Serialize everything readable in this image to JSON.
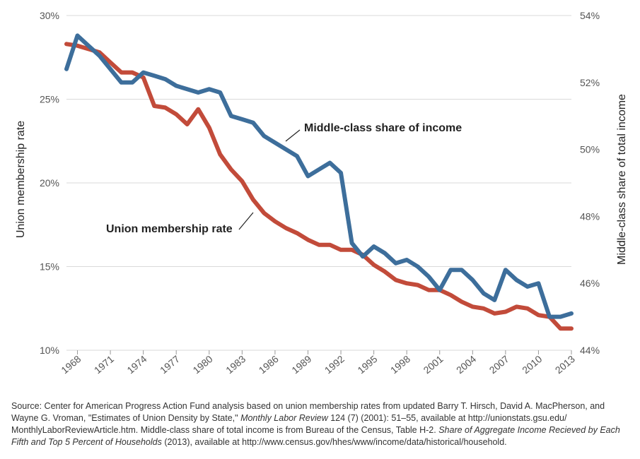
{
  "chart_data": {
    "type": "line",
    "x": [
      1967,
      1968,
      1969,
      1970,
      1971,
      1972,
      1973,
      1974,
      1975,
      1976,
      1977,
      1978,
      1979,
      1980,
      1981,
      1982,
      1983,
      1984,
      1985,
      1986,
      1987,
      1988,
      1989,
      1990,
      1991,
      1992,
      1993,
      1994,
      1995,
      1996,
      1997,
      1998,
      1999,
      2000,
      2001,
      2002,
      2003,
      2004,
      2005,
      2006,
      2007,
      2008,
      2009,
      2010,
      2011,
      2012,
      2013
    ],
    "x_tick_labels": [
      "1968",
      "1971",
      "1974",
      "1977",
      "1980",
      "1983",
      "1986",
      "1989",
      "1992",
      "1995",
      "1998",
      "2001",
      "2004",
      "2007",
      "2010",
      "2013"
    ],
    "y_left": {
      "label": "Union membership rate",
      "range": [
        10,
        30
      ],
      "ticks": [
        "10%",
        "15%",
        "20%",
        "25%",
        "30%"
      ]
    },
    "y_right": {
      "label": "Middle-class share of total income",
      "range": [
        44,
        54
      ],
      "ticks": [
        "44%",
        "46%",
        "48%",
        "50%",
        "52%",
        "54%"
      ]
    },
    "series": [
      {
        "name": "Middle-class share of income",
        "axis": "right",
        "color": "#3d6e9b",
        "values": [
          52.4,
          53.4,
          53.1,
          52.8,
          52.4,
          52.0,
          52.0,
          52.3,
          52.2,
          52.1,
          51.9,
          51.8,
          51.7,
          51.8,
          51.7,
          51.0,
          50.9,
          50.8,
          50.4,
          50.2,
          50.0,
          49.8,
          49.2,
          49.4,
          49.6,
          49.3,
          47.2,
          46.8,
          47.1,
          46.9,
          46.6,
          46.7,
          46.5,
          46.2,
          45.8,
          46.4,
          46.4,
          46.1,
          45.7,
          45.5,
          46.4,
          46.1,
          45.9,
          46.0,
          45.0,
          45.0,
          45.1
        ]
      },
      {
        "name": "Union membership rate",
        "axis": "left",
        "color": "#c24b3a",
        "values": [
          28.3,
          28.2,
          28.0,
          27.8,
          27.2,
          26.6,
          26.6,
          26.3,
          24.6,
          24.5,
          24.1,
          23.5,
          24.4,
          23.3,
          21.7,
          20.8,
          20.1,
          19.0,
          18.2,
          17.7,
          17.3,
          17.0,
          16.6,
          16.3,
          16.3,
          16.0,
          16.0,
          15.7,
          15.1,
          14.7,
          14.2,
          14.0,
          13.9,
          13.6,
          13.6,
          13.3,
          12.9,
          12.6,
          12.5,
          12.2,
          12.3,
          12.6,
          12.5,
          12.1,
          12.0,
          11.3,
          11.3
        ]
      }
    ],
    "annotations": {
      "middle_class": "Middle-class share of income",
      "union": "Union membership rate"
    }
  },
  "source": {
    "part1": "Source: Center for American Progress Action Fund analysis based on union membership rates from updated Barry T. Hirsch, David A. MacPherson, and Wayne G. Vroman, \"Estimates of Union Density by State,\" ",
    "journal": "Monthly Labor Review",
    "part2": " 124 (7) (2001): 51–55, available at http://unionstats.gsu.edu/ MonthlyLaborReviewArticle.htm. Middle-class share of total income is from Bureau of the Census, Table H-2. ",
    "report": "Share of Aggregate Income Recieved by Each Fifth and Top 5 Percent of Households",
    "part3": " (2013), available at http://www.census.gov/hhes/www/income/data/historical/household."
  }
}
